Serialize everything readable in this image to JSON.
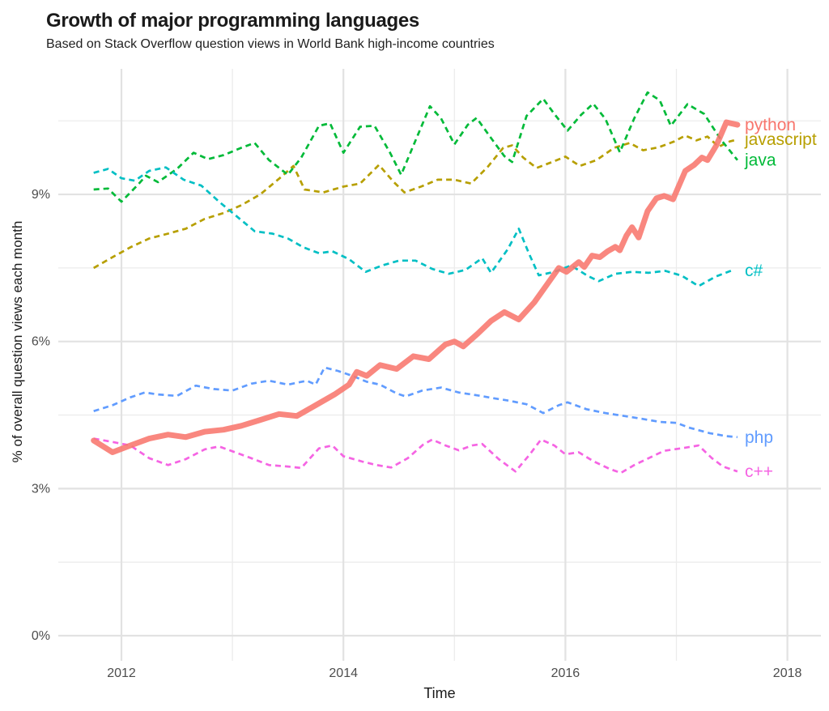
{
  "chart_data": {
    "type": "line",
    "title": "Growth of major programming languages",
    "subtitle": "Based on Stack Overflow question views in World Bank high-income countries",
    "xlabel": "Time",
    "ylabel": "% of overall question views each month",
    "xlim": [
      2011.42,
      2018.31
    ],
    "ylim": [
      -0.5,
      11.56
    ],
    "grid": true,
    "legend_position": "end-of-line-labels-right",
    "x_ticks": [
      {
        "value": 2012,
        "label": "2012"
      },
      {
        "value": 2014,
        "label": "2014"
      },
      {
        "value": 2016,
        "label": "2016"
      },
      {
        "value": 2018,
        "label": "2018"
      }
    ],
    "x_minor_ticks": [
      2013,
      2015,
      2017
    ],
    "y_ticks": [
      {
        "value": 0,
        "label": "0%"
      },
      {
        "value": 3,
        "label": "3%"
      },
      {
        "value": 6,
        "label": "6%"
      },
      {
        "value": 9,
        "label": "9%"
      }
    ],
    "y_minor_ticks": [
      1.5,
      4.5,
      7.5,
      10.5
    ],
    "series": [
      {
        "name": "javascript",
        "color": "#B79F00",
        "line_style": "dashed",
        "line_width": 2.7,
        "points": [
          [
            2011.75,
            7.5
          ],
          [
            2011.92,
            7.72
          ],
          [
            2012.08,
            7.92
          ],
          [
            2012.25,
            8.1
          ],
          [
            2012.42,
            8.2
          ],
          [
            2012.58,
            8.3
          ],
          [
            2012.75,
            8.5
          ],
          [
            2012.92,
            8.62
          ],
          [
            2013.08,
            8.78
          ],
          [
            2013.25,
            9.0
          ],
          [
            2013.42,
            9.32
          ],
          [
            2013.55,
            9.58
          ],
          [
            2013.65,
            9.1
          ],
          [
            2013.82,
            9.04
          ],
          [
            2014.0,
            9.16
          ],
          [
            2014.15,
            9.22
          ],
          [
            2014.32,
            9.6
          ],
          [
            2014.45,
            9.26
          ],
          [
            2014.55,
            9.04
          ],
          [
            2014.7,
            9.16
          ],
          [
            2014.85,
            9.3
          ],
          [
            2015.0,
            9.3
          ],
          [
            2015.15,
            9.22
          ],
          [
            2015.3,
            9.56
          ],
          [
            2015.44,
            9.95
          ],
          [
            2015.52,
            10.0
          ],
          [
            2015.62,
            9.75
          ],
          [
            2015.74,
            9.54
          ],
          [
            2015.88,
            9.66
          ],
          [
            2016.0,
            9.77
          ],
          [
            2016.13,
            9.58
          ],
          [
            2016.28,
            9.7
          ],
          [
            2016.44,
            9.95
          ],
          [
            2016.58,
            10.05
          ],
          [
            2016.7,
            9.9
          ],
          [
            2016.84,
            9.96
          ],
          [
            2016.98,
            10.08
          ],
          [
            2017.08,
            10.2
          ],
          [
            2017.18,
            10.1
          ],
          [
            2017.28,
            10.18
          ],
          [
            2017.38,
            9.97
          ],
          [
            2017.48,
            10.08
          ],
          [
            2017.55,
            10.12
          ]
        ]
      },
      {
        "name": "java",
        "color": "#00BA38",
        "line_style": "dashed",
        "line_width": 2.7,
        "points": [
          [
            2011.75,
            9.1
          ],
          [
            2011.88,
            9.12
          ],
          [
            2012.0,
            8.85
          ],
          [
            2012.15,
            9.2
          ],
          [
            2012.22,
            9.38
          ],
          [
            2012.33,
            9.25
          ],
          [
            2012.5,
            9.52
          ],
          [
            2012.65,
            9.85
          ],
          [
            2012.78,
            9.72
          ],
          [
            2012.92,
            9.8
          ],
          [
            2013.08,
            9.95
          ],
          [
            2013.2,
            10.05
          ],
          [
            2013.33,
            9.7
          ],
          [
            2013.5,
            9.4
          ],
          [
            2013.62,
            9.75
          ],
          [
            2013.78,
            10.4
          ],
          [
            2013.88,
            10.45
          ],
          [
            2014.0,
            9.85
          ],
          [
            2014.15,
            10.38
          ],
          [
            2014.28,
            10.4
          ],
          [
            2014.42,
            9.85
          ],
          [
            2014.52,
            9.4
          ],
          [
            2014.65,
            10.1
          ],
          [
            2014.78,
            10.8
          ],
          [
            2014.88,
            10.55
          ],
          [
            2015.0,
            10.02
          ],
          [
            2015.12,
            10.42
          ],
          [
            2015.2,
            10.56
          ],
          [
            2015.33,
            10.15
          ],
          [
            2015.45,
            9.78
          ],
          [
            2015.52,
            9.66
          ],
          [
            2015.65,
            10.6
          ],
          [
            2015.8,
            10.95
          ],
          [
            2015.9,
            10.64
          ],
          [
            2016.02,
            10.3
          ],
          [
            2016.14,
            10.62
          ],
          [
            2016.25,
            10.85
          ],
          [
            2016.36,
            10.54
          ],
          [
            2016.49,
            9.86
          ],
          [
            2016.62,
            10.55
          ],
          [
            2016.74,
            11.08
          ],
          [
            2016.85,
            10.92
          ],
          [
            2016.95,
            10.4
          ],
          [
            2017.1,
            10.84
          ],
          [
            2017.25,
            10.64
          ],
          [
            2017.4,
            10.12
          ],
          [
            2017.55,
            9.7
          ]
        ]
      },
      {
        "name": "c#",
        "color": "#00BFC4",
        "line_style": "dashed",
        "line_width": 2.7,
        "points": [
          [
            2011.75,
            9.44
          ],
          [
            2011.88,
            9.52
          ],
          [
            2012.0,
            9.33
          ],
          [
            2012.12,
            9.28
          ],
          [
            2012.25,
            9.48
          ],
          [
            2012.4,
            9.55
          ],
          [
            2012.56,
            9.3
          ],
          [
            2012.72,
            9.18
          ],
          [
            2012.88,
            8.85
          ],
          [
            2013.04,
            8.55
          ],
          [
            2013.2,
            8.25
          ],
          [
            2013.36,
            8.2
          ],
          [
            2013.5,
            8.1
          ],
          [
            2013.64,
            7.92
          ],
          [
            2013.78,
            7.8
          ],
          [
            2013.9,
            7.84
          ],
          [
            2014.05,
            7.68
          ],
          [
            2014.2,
            7.42
          ],
          [
            2014.35,
            7.55
          ],
          [
            2014.5,
            7.65
          ],
          [
            2014.65,
            7.65
          ],
          [
            2014.8,
            7.48
          ],
          [
            2014.95,
            7.38
          ],
          [
            2015.1,
            7.46
          ],
          [
            2015.25,
            7.7
          ],
          [
            2015.33,
            7.4
          ],
          [
            2015.48,
            7.88
          ],
          [
            2015.58,
            8.3
          ],
          [
            2015.67,
            7.8
          ],
          [
            2015.76,
            7.35
          ],
          [
            2015.9,
            7.42
          ],
          [
            2016.05,
            7.55
          ],
          [
            2016.2,
            7.34
          ],
          [
            2016.3,
            7.23
          ],
          [
            2016.45,
            7.38
          ],
          [
            2016.6,
            7.42
          ],
          [
            2016.75,
            7.4
          ],
          [
            2016.9,
            7.44
          ],
          [
            2017.05,
            7.34
          ],
          [
            2017.2,
            7.13
          ],
          [
            2017.35,
            7.32
          ],
          [
            2017.5,
            7.45
          ]
        ]
      },
      {
        "name": "php",
        "color": "#619CFF",
        "line_style": "dashed",
        "line_width": 2.7,
        "points": [
          [
            2011.75,
            4.58
          ],
          [
            2011.92,
            4.7
          ],
          [
            2012.08,
            4.86
          ],
          [
            2012.21,
            4.96
          ],
          [
            2012.33,
            4.92
          ],
          [
            2012.5,
            4.89
          ],
          [
            2012.67,
            5.1
          ],
          [
            2012.83,
            5.03
          ],
          [
            2013.0,
            5.0
          ],
          [
            2013.17,
            5.14
          ],
          [
            2013.33,
            5.2
          ],
          [
            2013.5,
            5.12
          ],
          [
            2013.67,
            5.2
          ],
          [
            2013.75,
            5.12
          ],
          [
            2013.83,
            5.47
          ],
          [
            2013.95,
            5.4
          ],
          [
            2014.08,
            5.3
          ],
          [
            2014.21,
            5.18
          ],
          [
            2014.33,
            5.12
          ],
          [
            2014.48,
            4.94
          ],
          [
            2014.56,
            4.88
          ],
          [
            2014.71,
            5.0
          ],
          [
            2014.88,
            5.06
          ],
          [
            2015.04,
            4.96
          ],
          [
            2015.21,
            4.9
          ],
          [
            2015.36,
            4.84
          ],
          [
            2015.5,
            4.79
          ],
          [
            2015.65,
            4.72
          ],
          [
            2015.8,
            4.54
          ],
          [
            2015.94,
            4.7
          ],
          [
            2016.02,
            4.76
          ],
          [
            2016.19,
            4.62
          ],
          [
            2016.36,
            4.54
          ],
          [
            2016.53,
            4.48
          ],
          [
            2016.7,
            4.42
          ],
          [
            2016.85,
            4.36
          ],
          [
            2017.0,
            4.34
          ],
          [
            2017.12,
            4.24
          ],
          [
            2017.3,
            4.13
          ],
          [
            2017.45,
            4.07
          ],
          [
            2017.55,
            4.05
          ]
        ]
      },
      {
        "name": "c++",
        "color": "#F564E3",
        "line_style": "dashed",
        "line_width": 2.7,
        "points": [
          [
            2011.75,
            4.02
          ],
          [
            2011.92,
            3.95
          ],
          [
            2012.08,
            3.88
          ],
          [
            2012.25,
            3.62
          ],
          [
            2012.42,
            3.48
          ],
          [
            2012.58,
            3.6
          ],
          [
            2012.75,
            3.8
          ],
          [
            2012.88,
            3.86
          ],
          [
            2013.0,
            3.76
          ],
          [
            2013.17,
            3.62
          ],
          [
            2013.33,
            3.48
          ],
          [
            2013.5,
            3.45
          ],
          [
            2013.62,
            3.42
          ],
          [
            2013.78,
            3.82
          ],
          [
            2013.9,
            3.88
          ],
          [
            2014.0,
            3.66
          ],
          [
            2014.17,
            3.55
          ],
          [
            2014.3,
            3.48
          ],
          [
            2014.43,
            3.43
          ],
          [
            2014.58,
            3.62
          ],
          [
            2014.72,
            3.9
          ],
          [
            2014.8,
            4.0
          ],
          [
            2014.92,
            3.88
          ],
          [
            2015.04,
            3.78
          ],
          [
            2015.16,
            3.88
          ],
          [
            2015.25,
            3.91
          ],
          [
            2015.4,
            3.6
          ],
          [
            2015.55,
            3.35
          ],
          [
            2015.68,
            3.7
          ],
          [
            2015.78,
            4.0
          ],
          [
            2015.9,
            3.88
          ],
          [
            2016.0,
            3.7
          ],
          [
            2016.12,
            3.74
          ],
          [
            2016.25,
            3.56
          ],
          [
            2016.4,
            3.4
          ],
          [
            2016.5,
            3.32
          ],
          [
            2016.62,
            3.48
          ],
          [
            2016.75,
            3.62
          ],
          [
            2016.89,
            3.77
          ],
          [
            2017.07,
            3.83
          ],
          [
            2017.2,
            3.88
          ],
          [
            2017.32,
            3.62
          ],
          [
            2017.42,
            3.45
          ],
          [
            2017.55,
            3.35
          ]
        ]
      },
      {
        "name": "python",
        "color": "#F8766D",
        "line_style": "solid",
        "line_width": 7,
        "points": [
          [
            2011.75,
            3.98
          ],
          [
            2011.92,
            3.74
          ],
          [
            2012.08,
            3.88
          ],
          [
            2012.25,
            4.02
          ],
          [
            2012.42,
            4.1
          ],
          [
            2012.58,
            4.05
          ],
          [
            2012.75,
            4.16
          ],
          [
            2012.92,
            4.2
          ],
          [
            2013.08,
            4.28
          ],
          [
            2013.25,
            4.4
          ],
          [
            2013.42,
            4.52
          ],
          [
            2013.58,
            4.48
          ],
          [
            2013.75,
            4.7
          ],
          [
            2013.92,
            4.92
          ],
          [
            2014.05,
            5.12
          ],
          [
            2014.12,
            5.38
          ],
          [
            2014.21,
            5.3
          ],
          [
            2014.33,
            5.52
          ],
          [
            2014.48,
            5.44
          ],
          [
            2014.63,
            5.7
          ],
          [
            2014.77,
            5.64
          ],
          [
            2014.92,
            5.94
          ],
          [
            2015.0,
            6.0
          ],
          [
            2015.08,
            5.9
          ],
          [
            2015.21,
            6.16
          ],
          [
            2015.33,
            6.42
          ],
          [
            2015.45,
            6.6
          ],
          [
            2015.58,
            6.45
          ],
          [
            2015.72,
            6.8
          ],
          [
            2015.83,
            7.15
          ],
          [
            2015.94,
            7.5
          ],
          [
            2016.01,
            7.42
          ],
          [
            2016.12,
            7.62
          ],
          [
            2016.17,
            7.52
          ],
          [
            2016.24,
            7.75
          ],
          [
            2016.31,
            7.72
          ],
          [
            2016.38,
            7.84
          ],
          [
            2016.45,
            7.93
          ],
          [
            2016.49,
            7.86
          ],
          [
            2016.55,
            8.16
          ],
          [
            2016.6,
            8.33
          ],
          [
            2016.66,
            8.12
          ],
          [
            2016.74,
            8.66
          ],
          [
            2016.82,
            8.92
          ],
          [
            2016.89,
            8.97
          ],
          [
            2016.97,
            8.9
          ],
          [
            2017.08,
            9.48
          ],
          [
            2017.16,
            9.6
          ],
          [
            2017.23,
            9.75
          ],
          [
            2017.28,
            9.7
          ],
          [
            2017.36,
            10.0
          ],
          [
            2017.45,
            10.47
          ],
          [
            2017.55,
            10.42
          ]
        ]
      }
    ]
  }
}
